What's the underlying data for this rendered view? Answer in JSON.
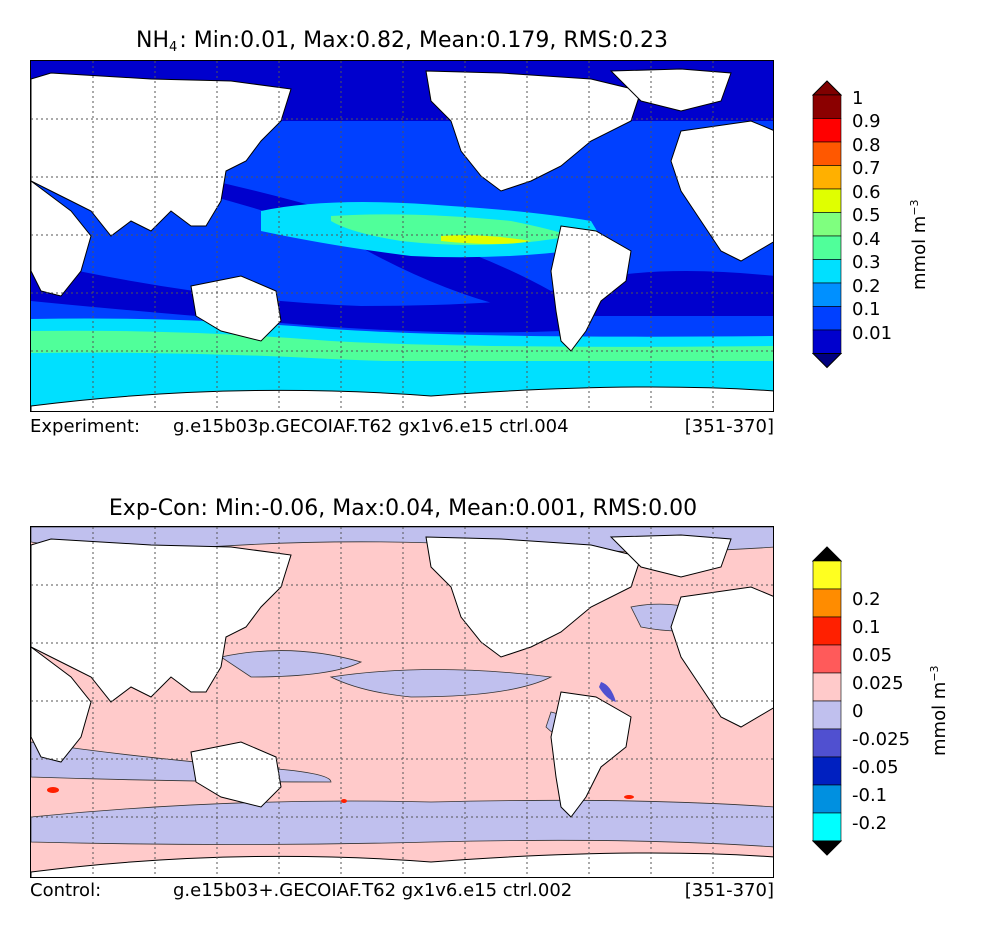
{
  "panels": [
    {
      "title_prefix": "NH",
      "title_sub": "4",
      "title_rest": ": Min:0.01, Max:0.82, Mean:0.179, RMS:0.23",
      "footer_label": "Experiment:",
      "footer_case": "g.e15b03p.GECOIAF.T62 gx1v6.e15 ctrl.004",
      "footer_years": "[351-370]",
      "colorbar": {
        "levels": [
          "0.01",
          "0.1",
          "0.2",
          "0.3",
          "0.4",
          "0.5",
          "0.6",
          "0.7",
          "0.8",
          "0.9",
          "1"
        ],
        "colors": [
          "#00007f",
          "#0000cd",
          "#0040ff",
          "#0090ff",
          "#00e0ff",
          "#50ff9a",
          "#7fff7f",
          "#e0ff00",
          "#ffb000",
          "#ff5800",
          "#ff0000",
          "#8b0000",
          "#7f0000"
        ],
        "unit_text": "mmol m",
        "unit_exp": "−3"
      }
    },
    {
      "title_prefix": "",
      "title_sub": "",
      "title_rest": "Exp-Con: Min:-0.06, Max:0.04, Mean:0.001, RMS:0.00",
      "footer_label": "Control:",
      "footer_case": "g.e15b03+.GECOIAF.T62 gx1v6.e15 ctrl.002",
      "footer_years": "[351-370]",
      "colorbar": {
        "levels": [
          "-0.2",
          "-0.1",
          "-0.05",
          "-0.025",
          "0",
          "0.025",
          "0.05",
          "0.1",
          "0.2"
        ],
        "colors": [
          "#000000",
          "#00ffff",
          "#0090e0",
          "#0020c0",
          "#5050d0",
          "#c0c0ee",
          "#ffcaca",
          "#ff5a5a",
          "#ff2000",
          "#ff8c00",
          "#ffff20",
          "#000000"
        ],
        "unit_text": "mmol m",
        "unit_exp": "−3"
      }
    }
  ],
  "chart_data": [
    {
      "type": "heatmap",
      "title": "NH4: Min:0.01, Max:0.82, Mean:0.179, RMS:0.23",
      "variable": "NH4",
      "units": "mmol m-3",
      "stats": {
        "min": 0.01,
        "max": 0.82,
        "mean": 0.179,
        "rms": 0.23
      },
      "contour_levels": [
        0.01,
        0.1,
        0.2,
        0.3,
        0.4,
        0.5,
        0.6,
        0.7,
        0.8,
        0.9,
        1
      ],
      "grid": true,
      "legend": "right"
    },
    {
      "type": "heatmap",
      "title": "Exp-Con: Min:-0.06, Max:0.04, Mean:0.001, RMS:0.00",
      "variable": "Exp-Con",
      "units": "mmol m-3",
      "stats": {
        "min": -0.06,
        "max": 0.04,
        "mean": 0.001,
        "rms": 0.0
      },
      "contour_levels": [
        -0.2,
        -0.1,
        -0.05,
        -0.025,
        0,
        0.025,
        0.05,
        0.1,
        0.2
      ],
      "grid": true,
      "legend": "right"
    }
  ]
}
